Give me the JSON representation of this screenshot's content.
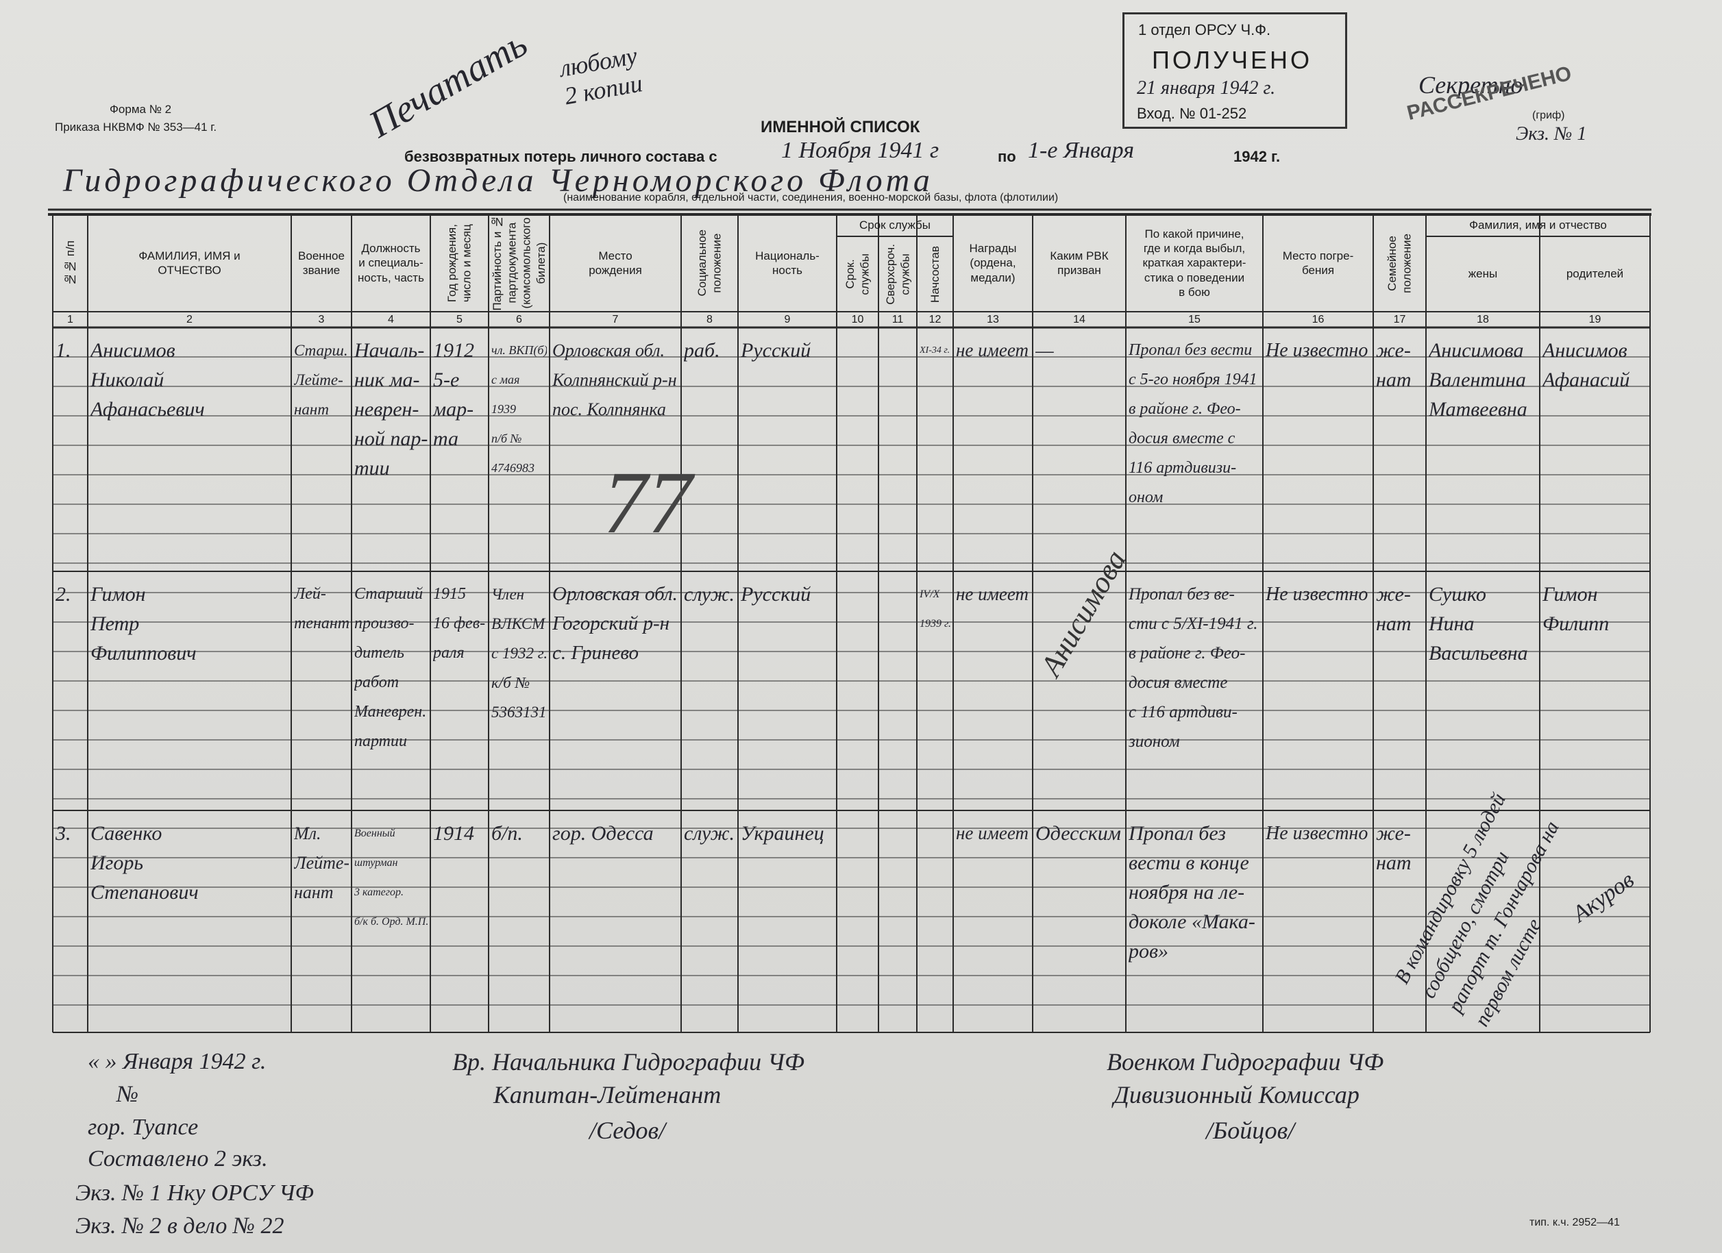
{
  "header": {
    "form": "Форма № 2",
    "order": "Приказа НКВМФ № 353—41 г.",
    "title": "ИМЕННОЙ СПИСОК",
    "subtitle": "безвозвратных потерь личного состава с",
    "from_date": "1 Ноября 1941 г",
    "to_word": "по",
    "to_date": "1-е Января",
    "year": "1942 г.",
    "unit": "Гидрографического Отдела Черноморского Флота",
    "unit_caption": "(наименование корабля, отдельной части, соединения, военно-морской базы, флота (флотилии)"
  },
  "stamp": {
    "department": "1 отдел ОРСУ Ч.Ф.",
    "received": "ПОЛУЧЕНО",
    "date": "21 января 1942 г.",
    "entry": "Вход. № 01-252"
  },
  "secret": {
    "mark": "Секретно",
    "declassified": "РАССЕКРЕЧЕНО",
    "caption": "(гриф)",
    "copy": "Экз. № 1"
  },
  "notes": {
    "print": "Печатать",
    "copies": "любому\n2 копии",
    "number": "77",
    "diagonal": "Анисимова",
    "side": "В командировку 5 людей\nсообщено, смотри\nрапорт т. Гончарова на\nпервом листе",
    "side_signature": "Акуров"
  },
  "table": {
    "columns": [
      {
        "label": "№№ п/п",
        "number": 1,
        "vertical": true
      },
      {
        "label": "ФАМИЛИЯ, ИМЯ и\nОТЧЕСТВО",
        "number": 2
      },
      {
        "label": "Военное\nзвание",
        "number": 3
      },
      {
        "label": "Должность\nи специаль-\nность, часть",
        "number": 4
      },
      {
        "label": "Год рождения,\nчисло и месяц",
        "number": 5,
        "vertical": true
      },
      {
        "label": "Партийность и №\nпартдокумента\n(комсомольского\nбилета)",
        "number": 6,
        "vertical": true
      },
      {
        "label": "Место\nрождения",
        "number": 7
      },
      {
        "label": "Социальное\nположение",
        "number": 8,
        "vertical": true
      },
      {
        "label": "Националь-\nность",
        "number": 9
      },
      {
        "label": "Срок службы",
        "sub": [
          {
            "label": "Срок.\nслужбы",
            "number": 10,
            "vertical": true
          },
          {
            "label": "Сверхсроч.\nслужбы",
            "number": 11,
            "vertical": true
          },
          {
            "label": "Начсостав",
            "number": 12,
            "vertical": true
          }
        ]
      },
      {
        "label": "Награды\n(ордена,\nмедали)",
        "number": 13
      },
      {
        "label": "Каким РВК\nпризван",
        "number": 14
      },
      {
        "label": "По какой причине,\nгде и когда выбыл,\nкраткая характери-\nстика о поведении\nв бою",
        "number": 15
      },
      {
        "label": "Место погре-\nбения",
        "number": 16
      },
      {
        "label": "Семейное\nположение",
        "number": 17,
        "vertical": true
      },
      {
        "label": "Фамилия, имя и отчество",
        "sub": [
          {
            "label": "жены",
            "number": 18
          },
          {
            "label": "родителей",
            "number": 19
          }
        ]
      }
    ],
    "rows": [
      [
        "1.",
        "Анисимов\nНиколай\nАфанасьевич",
        "Старш.\nЛейте-\nнант",
        "Началь-\nник ма-\nневрен-\nной пар-\nтии",
        "1912\n5-е\nмар-\nта",
        "чл. ВКП(б)\nс мая\n1939\nп/б №\n4746983",
        "Орловская обл.\nКолпнянский р-н\nпос. Колпнянка",
        "раб.",
        "Русский",
        null,
        null,
        "XI-34 г.",
        "не имеет",
        "—",
        "Пропал без вести\nс 5-го ноября 1941\nв районе г. Фео-\nдосия вместе с\n116 артдивизи-\nоном",
        "Не известно",
        "же-\nнат",
        "Анисимова\nВалентина\nМатвеевна",
        "Анисимов\nАфанасий"
      ],
      [
        "2.",
        "Гимон\nПетр\nФилиппович",
        "Лей-\nтенант",
        "Старший\nпроизво-\nдитель\nработ\nМаневрен.\nпартии",
        "1915\n16 фев-\nраля",
        "Член\nВЛКСМ\nс 1932 г.\nк/б №\n5363131",
        "Орловская обл.\nГогорский р-н\nс. Гринево",
        "служ.",
        "Русский",
        null,
        null,
        "IV/X\n1939 г.",
        "не имеет",
        null,
        "Пропал без ве-\nсти с 5/XI-1941 г.\nв районе г. Фео-\nдосия вместе\nс 116 артдиви-\nзионом",
        "Не известно",
        "же-\nнат",
        "Сушко\nНина\nВасильевна",
        "Гимон\nФилипп"
      ],
      [
        "3.",
        "Савенко\nИгорь\nСтепанович",
        "Мл.\nЛейте-\nнант",
        "Военный\nштурман\n3 категор.\nб/к б. Орд. М.П.",
        "1914",
        "б/п.",
        "гор. Одесса",
        "служ.",
        "Украинец",
        null,
        null,
        null,
        "не имеет",
        "Одесским",
        "Пропал без\nвести в конце\nноября на ле-\nдоколе «Мака-\nров»",
        "Не известно",
        "же-\nнат",
        null,
        null
      ]
    ]
  },
  "footer": {
    "date": "« » Января 1942 г.",
    "number": "№",
    "city": "гор. Туапсе",
    "copies": "Составлено 2 экз.",
    "copy1": "Экз. № 1 Нку ОРСУ ЧФ",
    "copy2": "Экз. № 2 в дело № 22",
    "chief_title": "Вр. Начальника Гидрографии ЧФ",
    "chief_rank": "Капитан-Лейтенант",
    "chief_name": "/Седов/",
    "commissar_title": "Военком Гидрографии ЧФ",
    "commissar_rank": "Дивизионный Комиссар",
    "commissar_name": "/Бойцов/",
    "printer": "тип. к.ч. 2952—41"
  }
}
